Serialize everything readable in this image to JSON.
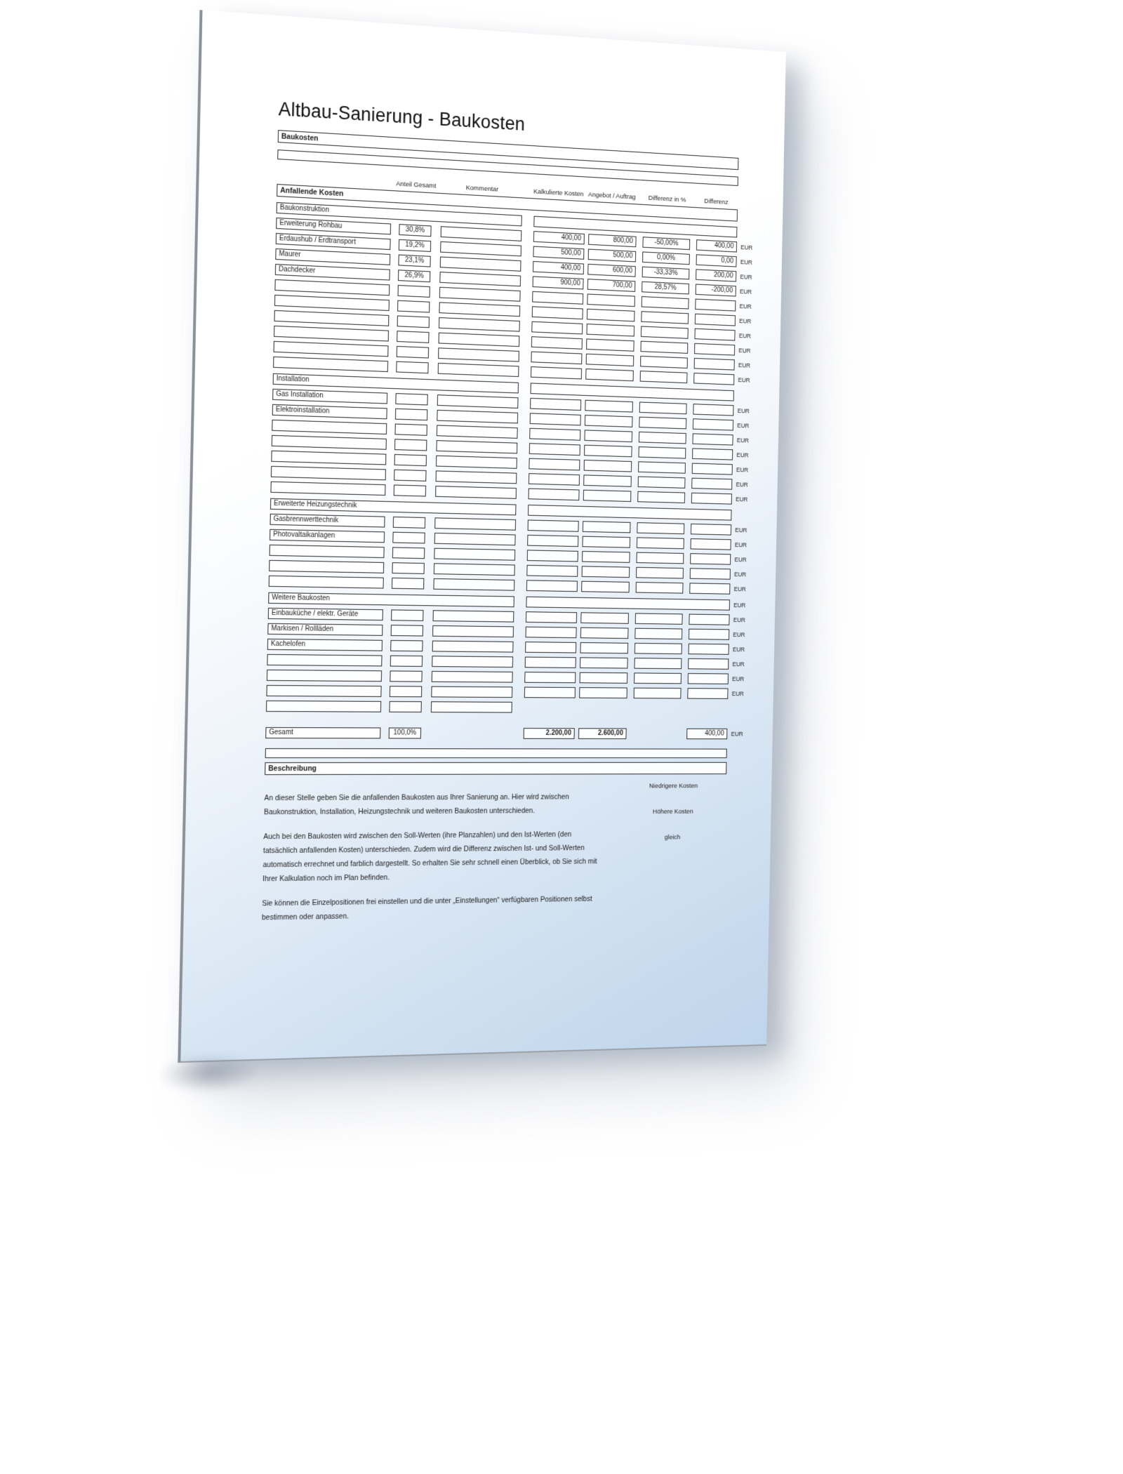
{
  "title": "Altbau-Sanierung - Baukosten",
  "currency_label": "EUR",
  "form": {
    "top_bar_label": "Baukosten",
    "columns": [
      "Anteil Gesamt",
      "Kommentar",
      "Kalkulierte Kosten",
      "Angebot / Auftrag",
      "Differenz in %",
      "Differenz"
    ],
    "main_section_label": "Anfallende Kosten",
    "sections": [
      {
        "name": "Baukonstruktion",
        "eur_on_header": false,
        "rows": [
          {
            "label": "Erweiterung Rohbau",
            "anteil": "30,8%",
            "kommentar": "",
            "kalkulierte_kosten": "400,00",
            "angebot_auftrag": "800,00",
            "differenz_prozent": "-50,00%",
            "differenz": "400,00"
          },
          {
            "label": "Erdaushub / Erdtransport",
            "anteil": "19,2%",
            "kommentar": "",
            "kalkulierte_kosten": "500,00",
            "angebot_auftrag": "500,00",
            "differenz_prozent": "0,00%",
            "differenz": "0,00"
          },
          {
            "label": "Maurer",
            "anteil": "23,1%",
            "kommentar": "",
            "kalkulierte_kosten": "400,00",
            "angebot_auftrag": "600,00",
            "differenz_prozent": "-33,33%",
            "differenz": "200,00"
          },
          {
            "label": "Dachdecker",
            "anteil": "26,9%",
            "kommentar": "",
            "kalkulierte_kosten": "900,00",
            "angebot_auftrag": "700,00",
            "differenz_prozent": "28,57%",
            "differenz": "-200,00"
          },
          {},
          {},
          {},
          {},
          {},
          {}
        ]
      },
      {
        "name": "Installation",
        "eur_on_header": false,
        "rows": [
          {
            "label": "Gas Installation"
          },
          {
            "label": "Elektroinstallation"
          },
          {},
          {},
          {},
          {},
          {}
        ]
      },
      {
        "name": "Erweiterte Heizungstechnik",
        "eur_on_header": false,
        "rows": [
          {
            "label": "Gasbrennwerttechnik"
          },
          {
            "label": "Photovaltaikanlagen"
          },
          {},
          {},
          {}
        ]
      },
      {
        "name": "Weitere Baukosten",
        "eur_on_header": true,
        "rows": [
          {
            "label": "Einbauküche / elektr. Geräte"
          },
          {
            "label": "Markisen / Rollläden"
          },
          {
            "label": "Kachelofen"
          },
          {},
          {},
          {},
          {
            "partial": true
          }
        ]
      }
    ],
    "total": {
      "label": "Gesamt",
      "anteil": "100,0%",
      "kalkulierte_kosten": "2.200,00",
      "angebot_auftrag": "2.600,00",
      "differenz": "400,00"
    }
  },
  "description": {
    "bar_label": "Beschreibung",
    "paragraphs": [
      "An dieser Stelle geben Sie die anfallenden Baukosten aus Ihrer Sanierung an. Hier wird zwischen Baukonstruktion, Installation, Heizungstechnik und weiteren Baukosten unterschieden.",
      "Auch bei den Baukosten wird zwischen den Soll-Werten (ihre Planzahlen) und den Ist-Werten (den tatsächlich anfallenden Kosten) unterschieden. Zudem wird die Differenz zwischen Ist- und Soll-Werten automatisch errechnet und farblich dargestellt. So erhalten Sie sehr schnell einen Überblick, ob Sie sich mit Ihrer Kalkulation noch im Plan befinden.",
      "Sie können die Einzelpositionen frei einstellen und die unter „Einstellungen“ verfügbaren Positionen selbst bestimmen oder anpassen."
    ],
    "legend": [
      "Niedrigere Kosten",
      "Höhere Kosten",
      "gleich"
    ]
  }
}
